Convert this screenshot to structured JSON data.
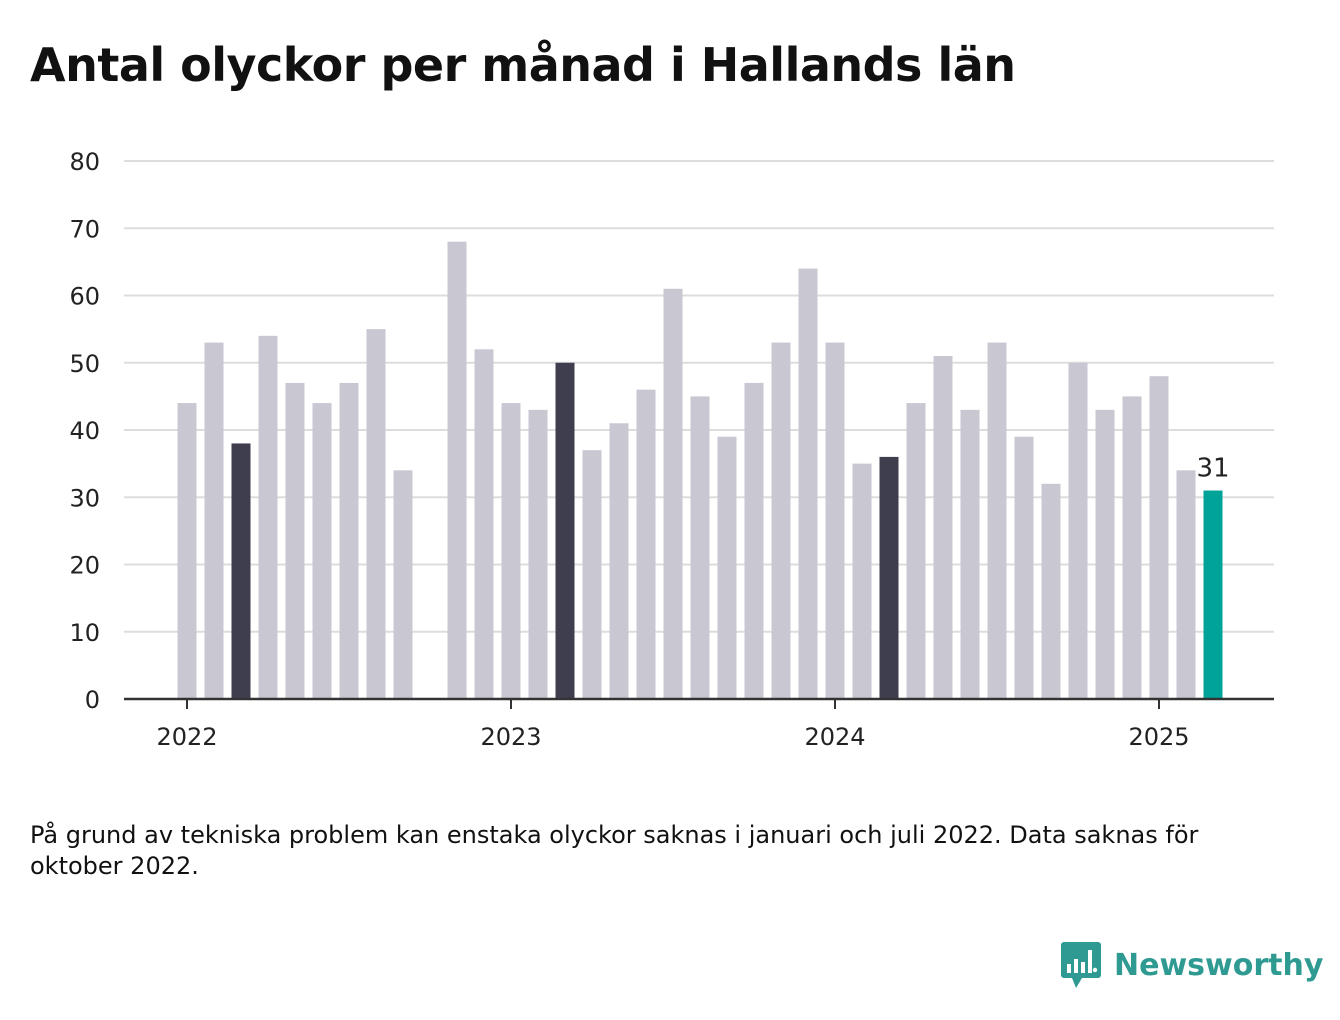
{
  "title": "Antal olyckor per månad i Hallands län",
  "footnote": "På grund av tekniska problem kan enstaka olyckor saknas i januari och juli 2022. Data saknas för oktober 2022.",
  "brand": {
    "name": "Newsworthy",
    "icon": "newsworthy-logo-icon",
    "color": "#2e9a91"
  },
  "colors": {
    "default": "#c8c7d2",
    "highlight": "#3f3e4e",
    "latest": "#00a398",
    "grid": "#dddddd",
    "axis": "#333333"
  },
  "chart_data": {
    "type": "bar",
    "title": "Antal olyckor per månad i Hallands län",
    "ylim": [
      0,
      80
    ],
    "yticks": [
      0,
      10,
      20,
      30,
      40,
      50,
      60,
      70,
      80
    ],
    "grid": true,
    "x_tick_labels": [
      "2022",
      "2023",
      "2024",
      "2025"
    ],
    "categories": [
      "2022-01",
      "2022-02",
      "2022-03",
      "2022-04",
      "2022-05",
      "2022-06",
      "2022-07",
      "2022-08",
      "2022-09",
      "2022-10",
      "2022-11",
      "2022-12",
      "2023-01",
      "2023-02",
      "2023-03",
      "2023-04",
      "2023-05",
      "2023-06",
      "2023-07",
      "2023-08",
      "2023-09",
      "2023-10",
      "2023-11",
      "2023-12",
      "2024-01",
      "2024-02",
      "2024-03",
      "2024-04",
      "2024-05",
      "2024-06",
      "2024-07",
      "2024-08",
      "2024-09",
      "2024-10",
      "2024-11",
      "2024-12",
      "2025-01",
      "2025-02",
      "2025-03"
    ],
    "values": [
      44,
      53,
      38,
      54,
      47,
      44,
      47,
      55,
      34,
      null,
      68,
      52,
      44,
      43,
      50,
      37,
      41,
      46,
      61,
      45,
      39,
      47,
      53,
      64,
      53,
      35,
      36,
      44,
      51,
      43,
      53,
      39,
      32,
      50,
      43,
      45,
      48,
      34,
      31
    ],
    "highlight": [
      "2022-03",
      "2023-03",
      "2024-03"
    ],
    "latest": "2025-03",
    "data_labels": [
      {
        "category": "2025-03",
        "text": "31"
      }
    ]
  }
}
